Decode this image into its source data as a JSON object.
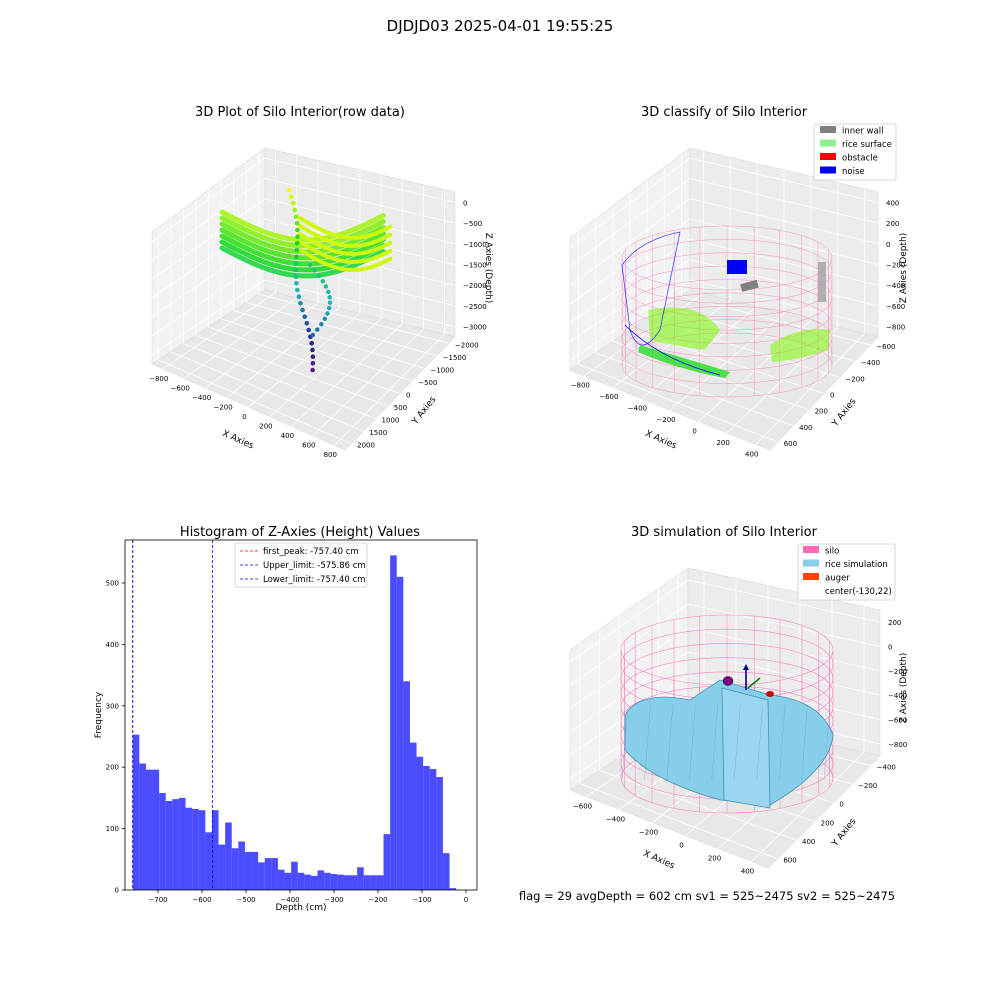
{
  "suptitle": "DJDJD03 2025-04-01 19:55:25",
  "footer": "flag = 29  avgDepth = 602 cm  sv1 = 525~2475  sv2 = 525~2475",
  "panel1": {
    "title": "3D Plot of Silo Interior(row data)",
    "xlabel": "X Axies",
    "ylabel": "Y Axies",
    "zlabel": "Z Axies (Depth)",
    "xticks": [
      "−800",
      "−600",
      "−400",
      "−200",
      "0",
      "200",
      "400",
      "600",
      "800"
    ],
    "yticks": [
      "2000",
      "1500",
      "1000",
      "500",
      "0",
      "−500",
      "−1000",
      "−1500",
      "−2000"
    ],
    "zticks": [
      "0",
      "−500",
      "−1000",
      "−1500",
      "−2000",
      "−2500",
      "−3000"
    ]
  },
  "panel2": {
    "title": "3D classify of Silo Interior",
    "xlabel": "X Axies",
    "ylabel": "Y Axies",
    "zlabel": "Z Axies (Depth)",
    "xticks": [
      "−800",
      "−600",
      "−400",
      "−200",
      "0",
      "200",
      "400"
    ],
    "yticks": [
      "600",
      "400",
      "200",
      "0",
      "−200",
      "−400",
      "−600"
    ],
    "zticks": [
      "400",
      "200",
      "0",
      "−200",
      "−400",
      "−600",
      "−800"
    ],
    "legend": [
      {
        "label": "inner wall",
        "color": "#808080"
      },
      {
        "label": "rice surface",
        "color": "#90ee90"
      },
      {
        "label": "obstacle",
        "color": "#ff0000"
      },
      {
        "label": "noise",
        "color": "#0000ff"
      }
    ]
  },
  "panel4": {
    "title": "3D simulation of Silo Interior",
    "xlabel": "X Axies",
    "ylabel": "Y Axies",
    "zlabel": "Z Axies (Depth)",
    "xticks": [
      "−600",
      "−400",
      "−200",
      "0",
      "200",
      "400"
    ],
    "yticks": [
      "600",
      "400",
      "200",
      "0",
      "−200",
      "−400"
    ],
    "zticks": [
      "200",
      "0",
      "−200",
      "−400",
      "−600",
      "−800"
    ],
    "legend": [
      {
        "label": "silo",
        "color": "#ff69b4"
      },
      {
        "label": "rice simulation",
        "color": "#87ceeb"
      },
      {
        "label": "auger",
        "color": "#ff4500"
      },
      {
        "label": "center(-130,22)",
        "color": ""
      }
    ]
  },
  "chart_data": {
    "type": "bar",
    "title": "Histogram of Z-Axies (Height) Values",
    "xlabel": "Depth (cm)",
    "ylabel": "Frequency",
    "xlim": [
      -775,
      25
    ],
    "ylim": [
      0,
      570
    ],
    "xticks": [
      -700,
      -600,
      -500,
      -400,
      -300,
      -200,
      -100,
      0
    ],
    "yticks": [
      0,
      100,
      200,
      300,
      400,
      500
    ],
    "bar_color": "#0000ff",
    "bin_edges": [
      -757.4,
      -742.4,
      -727.4,
      -712.4,
      -697.4,
      -682.4,
      -667.4,
      -652.4,
      -637.4,
      -622.4,
      -607.4,
      -592.4,
      -577.4,
      -562.4,
      -547.4,
      -532.4,
      -517.4,
      -502.4,
      -487.4,
      -472.4,
      -457.4,
      -442.4,
      -427.4,
      -412.4,
      -397.4,
      -382.4,
      -367.4,
      -352.4,
      -337.4,
      -322.4,
      -307.4,
      -292.4,
      -277.4,
      -262.4,
      -247.4,
      -232.4,
      -217.4,
      -202.4,
      -187.4,
      -172.4,
      -157.4,
      -142.4,
      -127.4,
      -112.4,
      -97.4,
      -82.4,
      -67.4,
      -52.4,
      -37.4,
      -22.4,
      -7.4,
      0
    ],
    "values": [
      253,
      206,
      196,
      196,
      158,
      145,
      148,
      150,
      134,
      132,
      130,
      94,
      130,
      74,
      110,
      68,
      79,
      62,
      62,
      45,
      52,
      52,
      33,
      28,
      46,
      28,
      25,
      23,
      32,
      28,
      26,
      25,
      24,
      24,
      37,
      24,
      24,
      24,
      91,
      545,
      510,
      340,
      240,
      217,
      202,
      197,
      184,
      60,
      3,
      0,
      0
    ],
    "vlines": [
      {
        "label": "first_peak: -757.40 cm",
        "x": -757.4,
        "color": "#ff0000"
      },
      {
        "label": "Upper_limit: -575.86 cm",
        "x": -575.86,
        "color": "#0000ff"
      },
      {
        "label": "Lower_limit: -757.40 cm",
        "x": -757.4,
        "color": "#0000ff"
      }
    ]
  }
}
